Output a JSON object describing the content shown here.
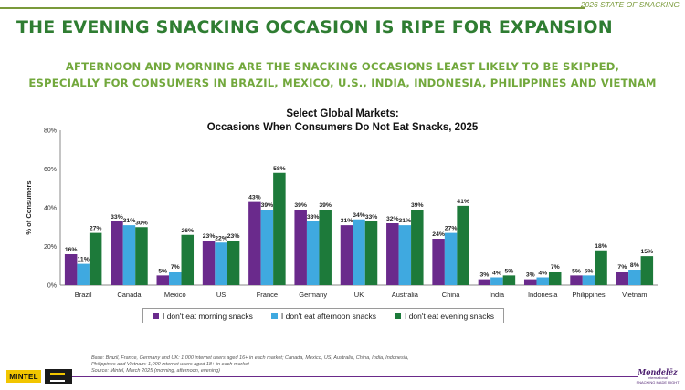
{
  "header": {
    "tag": "2026 STATE OF SNACKING",
    "title": "THE EVENING SNACKING OCCASION IS RIPE FOR EXPANSION",
    "subtitle_line1": "AFTERNOON AND MORNING ARE THE SNACKING OCCASIONS LEAST LIKELY TO BE SKIPPED,",
    "subtitle_line2": "ESPECIALLY FOR CONSUMERS IN BRAZIL, MEXICO, U.S., INDIA, INDONESIA, PHILIPPINES AND VIETNAM"
  },
  "chart_data": {
    "type": "bar",
    "title": "Select Global Markets:",
    "subtitle": "Occasions When Consumers Do Not Eat Snacks, 2025",
    "xlabel": "",
    "ylabel": "% of Consumers",
    "ylim": [
      0,
      80
    ],
    "yticks": [
      "0%",
      "20%",
      "40%",
      "60%",
      "80%"
    ],
    "ytick_values": [
      0,
      20,
      40,
      60,
      80
    ],
    "grid": false,
    "legend_position": "bottom",
    "categories": [
      "Brazil",
      "Canada",
      "Mexico",
      "US",
      "France",
      "Germany",
      "UK",
      "Australia",
      "China",
      "India",
      "Indonesia",
      "Philippines",
      "Vietnam"
    ],
    "series": [
      {
        "name": "I don't eat morning snacks",
        "color": "#6a2a8c",
        "values": [
          16,
          33,
          5,
          23,
          43,
          39,
          31,
          32,
          24,
          3,
          3,
          5,
          7
        ]
      },
      {
        "name": "I don't eat afternoon snacks",
        "color": "#3fa9e0",
        "values": [
          11,
          31,
          7,
          22,
          39,
          33,
          34,
          31,
          27,
          4,
          4,
          5,
          8
        ]
      },
      {
        "name": "I don't eat evening snacks",
        "color": "#1d7a3a",
        "values": [
          27,
          30,
          26,
          23,
          58,
          39,
          33,
          39,
          41,
          5,
          7,
          18,
          15
        ]
      }
    ]
  },
  "footnote": {
    "line1": "Base: Brazil, France, Germany and UK: 1,000 internet users aged 16+ in each market; Canada, Mexico, US, Australia, China, India, Indonesia,",
    "line2": "Philippines and Vietnam: 1,000 internet users aged 18+ in each market",
    "line3": "Source: Mintel, March 2025 (morning, afternoon, evening)"
  },
  "branding": {
    "left_logo": "MINTEL",
    "right_logo": "Mondelēz",
    "right_logo_sub1": "International",
    "right_logo_sub2": "SNACKING MADE RIGHT"
  }
}
